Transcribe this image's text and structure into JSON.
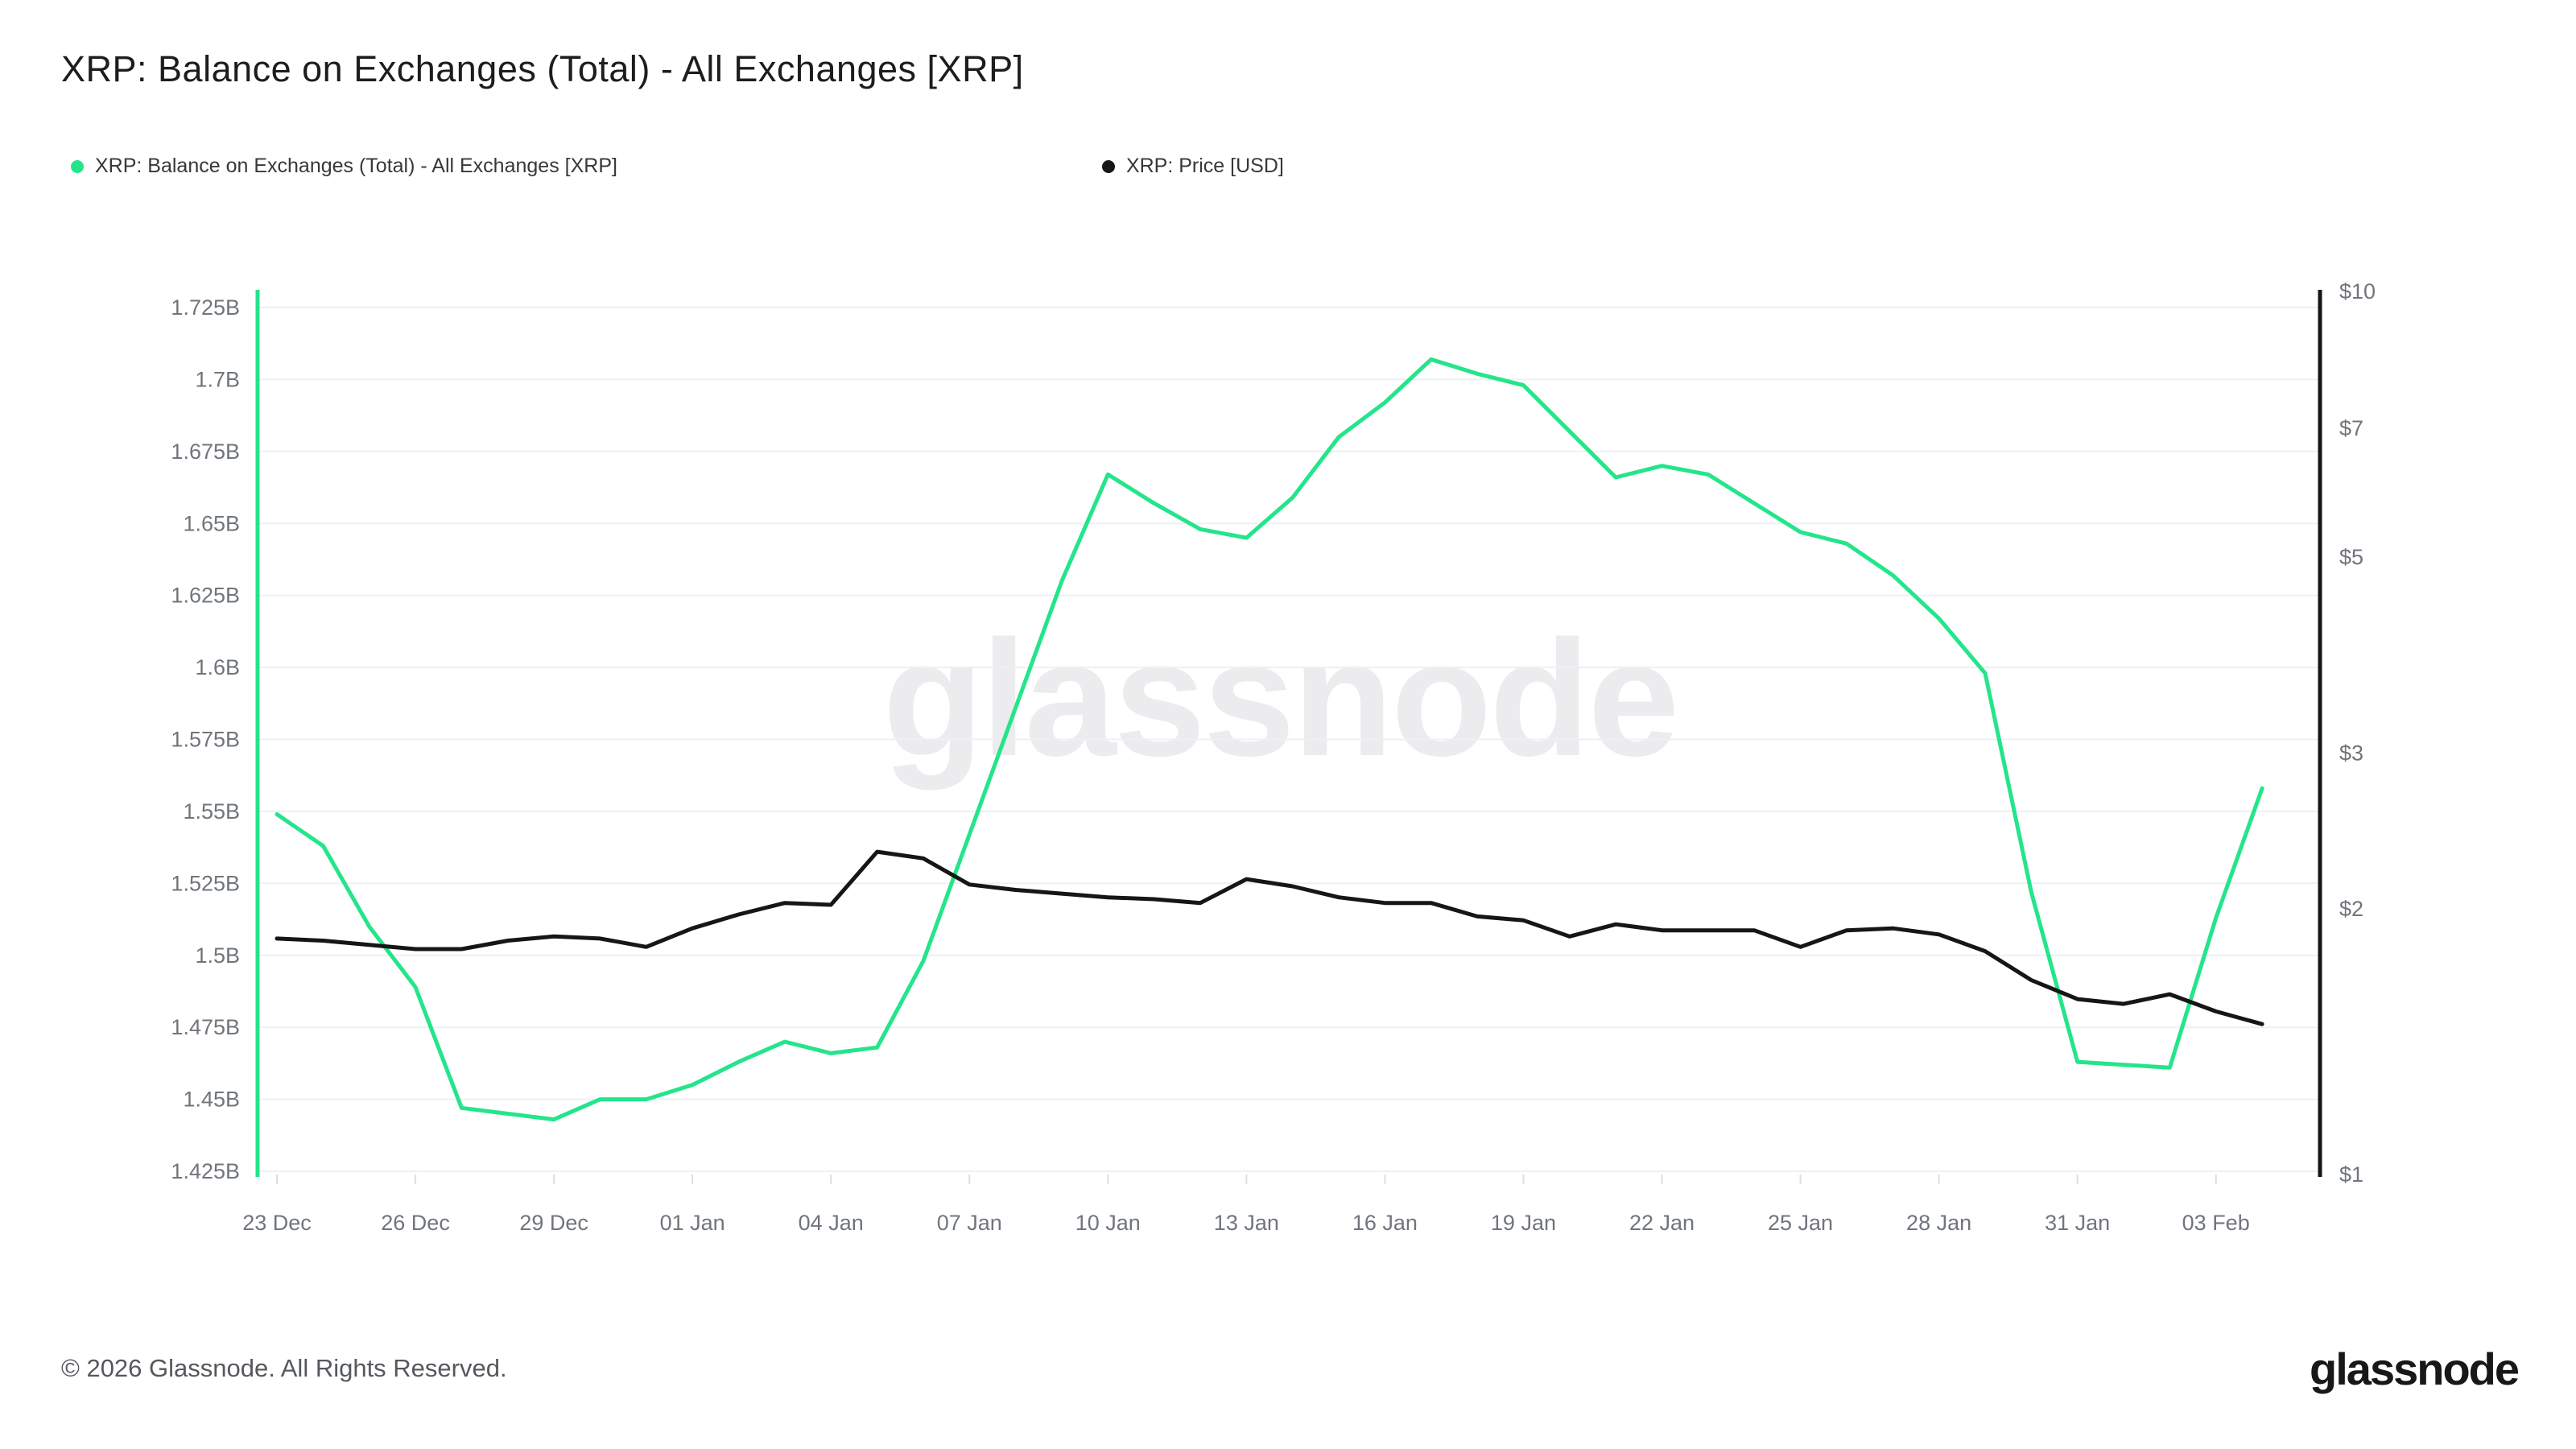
{
  "header": {
    "title": "XRP: Balance on Exchanges (Total) - All Exchanges [XRP]",
    "legend": [
      {
        "label": "XRP: Balance on Exchanges (Total) - All Exchanges [XRP]",
        "color": "#24e58a"
      },
      {
        "label": "XRP: Price [USD]",
        "color": "#161616"
      }
    ]
  },
  "watermark": "glassnode",
  "footer": {
    "copyright": "© 2026 Glassnode. All Rights Reserved.",
    "brand": "glassnode"
  },
  "chart_data": {
    "type": "line",
    "x": [
      "23 Dec",
      "24 Dec",
      "25 Dec",
      "26 Dec",
      "27 Dec",
      "28 Dec",
      "29 Dec",
      "30 Dec",
      "31 Dec",
      "01 Jan",
      "02 Jan",
      "03 Jan",
      "04 Jan",
      "05 Jan",
      "06 Jan",
      "07 Jan",
      "08 Jan",
      "09 Jan",
      "10 Jan",
      "11 Jan",
      "12 Jan",
      "13 Jan",
      "14 Jan",
      "15 Jan",
      "16 Jan",
      "17 Jan",
      "18 Jan",
      "19 Jan",
      "20 Jan",
      "21 Jan",
      "22 Jan",
      "23 Jan",
      "24 Jan",
      "25 Jan",
      "26 Jan",
      "27 Jan",
      "28 Jan",
      "29 Jan",
      "30 Jan",
      "31 Jan",
      "01 Feb",
      "02 Feb",
      "03 Feb",
      "04 Feb"
    ],
    "x_tick_every": 3,
    "x_tick_labels": [
      "23 Dec",
      "26 Dec",
      "29 Dec",
      "01 Jan",
      "04 Jan",
      "07 Jan",
      "10 Jan",
      "13 Jan",
      "16 Jan",
      "19 Jan",
      "22 Jan",
      "25 Jan",
      "28 Jan",
      "31 Jan",
      "03 Feb"
    ],
    "series": [
      {
        "name": "XRP: Balance on Exchanges (Total) - All Exchanges [XRP]",
        "axis": "left",
        "color": "#24e58a",
        "unit": "B XRP",
        "values": [
          1.549,
          1.538,
          1.51,
          1.489,
          1.447,
          1.445,
          1.443,
          1.45,
          1.45,
          1.455,
          1.463,
          1.47,
          1.466,
          1.468,
          1.498,
          1.542,
          1.586,
          1.63,
          1.667,
          1.657,
          1.648,
          1.645,
          1.659,
          1.68,
          1.692,
          1.707,
          1.702,
          1.698,
          1.682,
          1.666,
          1.67,
          1.667,
          1.657,
          1.647,
          1.643,
          1.632,
          1.617,
          1.598,
          1.522,
          1.463,
          1.462,
          1.461,
          1.513,
          1.558
        ]
      },
      {
        "name": "XRP: Price [USD]",
        "axis": "right",
        "color": "#161616",
        "unit": "USD",
        "values": [
          1.85,
          1.84,
          1.82,
          1.8,
          1.8,
          1.84,
          1.86,
          1.85,
          1.81,
          1.9,
          1.97,
          2.03,
          2.02,
          2.32,
          2.28,
          2.13,
          2.1,
          2.08,
          2.06,
          2.05,
          2.03,
          2.16,
          2.12,
          2.06,
          2.03,
          2.03,
          1.96,
          1.94,
          1.86,
          1.92,
          1.89,
          1.89,
          1.89,
          1.81,
          1.89,
          1.9,
          1.87,
          1.79,
          1.66,
          1.58,
          1.56,
          1.6,
          1.53,
          1.48
        ]
      }
    ],
    "left_axis": {
      "scale": "linear",
      "min": 1.425,
      "max": 1.725,
      "tick_values": [
        1.425,
        1.45,
        1.475,
        1.5,
        1.525,
        1.55,
        1.575,
        1.6,
        1.625,
        1.65,
        1.675,
        1.7,
        1.725
      ],
      "tick_labels": [
        "1.425B",
        "1.45B",
        "1.475B",
        "1.5B",
        "1.525B",
        "1.55B",
        "1.575B",
        "1.6B",
        "1.625B",
        "1.65B",
        "1.675B",
        "1.7B",
        "1.725B"
      ]
    },
    "right_axis": {
      "scale": "log",
      "min": 1,
      "max": 10,
      "tick_values": [
        10,
        7,
        5,
        3,
        2,
        1
      ],
      "tick_labels": [
        "$10",
        "$7",
        "$5",
        "$3",
        "$2",
        "$1"
      ]
    },
    "grid": "horizontal",
    "legend_position": "top-left",
    "grid_color": "#eef0f4",
    "tick_text_color": "#70757c"
  }
}
